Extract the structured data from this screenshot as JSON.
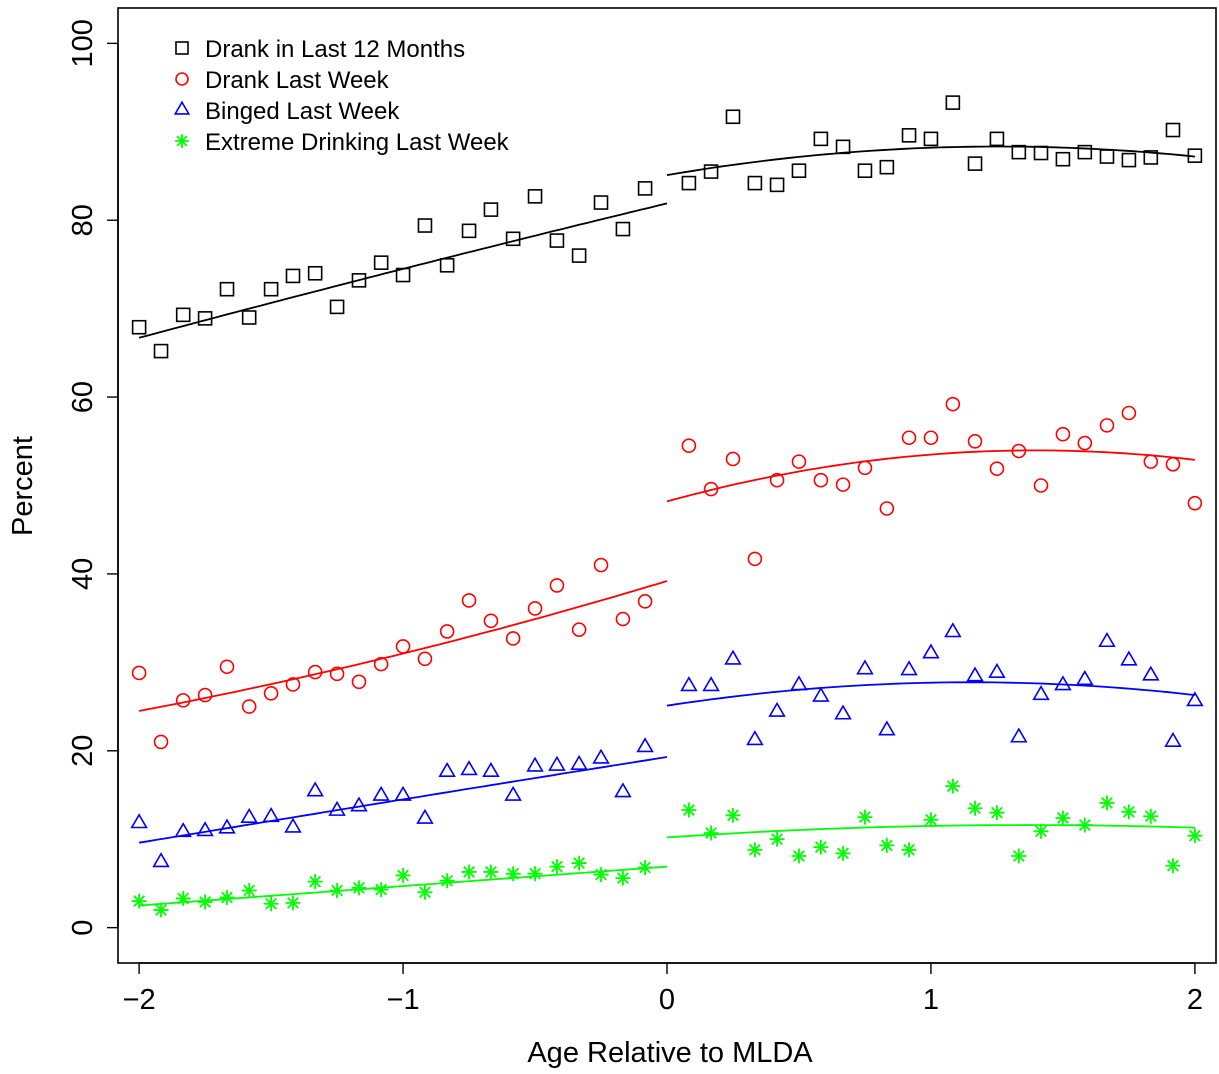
{
  "chart_data": {
    "type": "scatter",
    "title": "",
    "xlabel": "Age Relative to MLDA",
    "ylabel": "Percent",
    "xlim": [
      -2.08,
      2.08
    ],
    "ylim": [
      -4,
      104
    ],
    "xticks": [
      -2,
      -1,
      0,
      1,
      2
    ],
    "yticks": [
      0,
      20,
      40,
      60,
      80,
      100
    ],
    "xtick_labels": [
      "−2",
      "−1",
      "0",
      "1",
      "2"
    ],
    "ytick_labels": [
      "0",
      "20",
      "40",
      "60",
      "80",
      "100"
    ],
    "grid": false,
    "legend_position": "top-left",
    "series": [
      {
        "name": "Drank in Last 12 Months",
        "marker": "square",
        "color": "#000000",
        "x": [
          -2.0,
          -1.917,
          -1.833,
          -1.75,
          -1.667,
          -1.583,
          -1.5,
          -1.417,
          -1.333,
          -1.25,
          -1.167,
          -1.083,
          -1.0,
          -0.917,
          -0.833,
          -0.75,
          -0.667,
          -0.583,
          -0.5,
          -0.417,
          -0.333,
          -0.25,
          -0.167,
          -0.083,
          0.083,
          0.167,
          0.25,
          0.333,
          0.417,
          0.5,
          0.583,
          0.667,
          0.75,
          0.833,
          0.917,
          1.0,
          1.083,
          1.167,
          1.25,
          1.333,
          1.417,
          1.5,
          1.583,
          1.667,
          1.75,
          1.833,
          1.917,
          2.0
        ],
        "y": [
          67.9,
          65.2,
          69.3,
          68.9,
          72.2,
          69.0,
          72.2,
          73.7,
          74.0,
          70.2,
          73.2,
          75.2,
          73.8,
          79.4,
          74.9,
          78.8,
          81.2,
          77.9,
          82.7,
          77.7,
          76.0,
          82.0,
          79.0,
          83.6,
          84.2,
          85.5,
          91.7,
          84.2,
          84.0,
          85.6,
          89.2,
          88.3,
          85.6,
          86.0,
          89.6,
          89.2,
          93.3,
          86.4,
          89.2,
          87.7,
          87.6,
          86.9,
          87.7,
          87.2,
          86.8,
          87.1,
          90.2,
          87.3
        ],
        "fit_left": [
          66.7,
          74.5,
          81.9
        ],
        "fit_right": [
          85.1,
          88.2,
          87.2
        ]
      },
      {
        "name": "Drank Last Week",
        "marker": "circle",
        "color": "#ff0000",
        "x": [
          -2.0,
          -1.917,
          -1.833,
          -1.75,
          -1.667,
          -1.583,
          -1.5,
          -1.417,
          -1.333,
          -1.25,
          -1.167,
          -1.083,
          -1.0,
          -0.917,
          -0.833,
          -0.75,
          -0.667,
          -0.583,
          -0.5,
          -0.417,
          -0.333,
          -0.25,
          -0.167,
          -0.083,
          0.083,
          0.167,
          0.25,
          0.333,
          0.417,
          0.5,
          0.583,
          0.667,
          0.75,
          0.833,
          0.917,
          1.0,
          1.083,
          1.167,
          1.25,
          1.333,
          1.417,
          1.5,
          1.583,
          1.667,
          1.75,
          1.833,
          1.917,
          2.0
        ],
        "y": [
          28.8,
          21.0,
          25.7,
          26.3,
          29.5,
          25.0,
          26.5,
          27.5,
          28.9,
          28.7,
          27.8,
          29.8,
          31.8,
          30.4,
          33.5,
          37.0,
          34.7,
          32.7,
          36.1,
          38.7,
          33.7,
          41.0,
          34.9,
          36.9,
          54.5,
          49.6,
          53.0,
          41.7,
          50.6,
          52.7,
          50.6,
          50.1,
          52.0,
          47.4,
          55.4,
          55.4,
          59.2,
          55.0,
          51.9,
          53.9,
          50.0,
          55.8,
          54.8,
          56.8,
          58.2,
          52.7,
          52.4,
          48.0
        ],
        "fit_left": [
          24.5,
          31.0,
          39.2
        ],
        "fit_right": [
          48.2,
          53.5,
          52.9
        ]
      },
      {
        "name": "Binged Last Week",
        "marker": "triangle",
        "color": "#0000ff",
        "x": [
          -2.0,
          -1.917,
          -1.833,
          -1.75,
          -1.667,
          -1.583,
          -1.5,
          -1.417,
          -1.333,
          -1.25,
          -1.167,
          -1.083,
          -1.0,
          -0.917,
          -0.833,
          -0.75,
          -0.667,
          -0.583,
          -0.5,
          -0.417,
          -0.333,
          -0.25,
          -0.167,
          -0.083,
          0.083,
          0.167,
          0.25,
          0.333,
          0.417,
          0.5,
          0.583,
          0.667,
          0.75,
          0.833,
          0.917,
          1.0,
          1.083,
          1.167,
          1.25,
          1.333,
          1.417,
          1.5,
          1.583,
          1.667,
          1.75,
          1.833,
          1.917,
          2.0
        ],
        "y": [
          11.8,
          7.4,
          10.8,
          10.9,
          11.2,
          12.4,
          12.5,
          11.3,
          15.4,
          13.2,
          13.7,
          14.9,
          14.9,
          12.3,
          17.6,
          17.8,
          17.6,
          14.9,
          18.2,
          18.3,
          18.4,
          19.1,
          15.3,
          20.4,
          27.3,
          27.3,
          30.3,
          21.2,
          24.4,
          27.4,
          26.1,
          24.1,
          29.2,
          22.3,
          29.1,
          31.0,
          33.4,
          28.4,
          28.8,
          21.5,
          26.3,
          27.4,
          28.0,
          32.3,
          30.2,
          28.5,
          21.0,
          25.6
        ],
        "fit_left": [
          9.6,
          14.5,
          19.3
        ],
        "fit_right": [
          25.1,
          27.7,
          26.3
        ]
      },
      {
        "name": "Extreme Drinking Last Week",
        "marker": "asterisk",
        "color": "#00ff00",
        "x": [
          -2.0,
          -1.917,
          -1.833,
          -1.75,
          -1.667,
          -1.583,
          -1.5,
          -1.417,
          -1.333,
          -1.25,
          -1.167,
          -1.083,
          -1.0,
          -0.917,
          -0.833,
          -0.75,
          -0.667,
          -0.583,
          -0.5,
          -0.417,
          -0.333,
          -0.25,
          -0.167,
          -0.083,
          0.083,
          0.167,
          0.25,
          0.333,
          0.417,
          0.5,
          0.583,
          0.667,
          0.75,
          0.833,
          0.917,
          1.0,
          1.083,
          1.167,
          1.25,
          1.333,
          1.417,
          1.5,
          1.583,
          1.667,
          1.75,
          1.833,
          1.917,
          2.0
        ],
        "y": [
          3.0,
          2.0,
          3.3,
          2.9,
          3.4,
          4.2,
          2.7,
          2.8,
          5.2,
          4.2,
          4.5,
          4.3,
          5.9,
          4.0,
          5.3,
          6.3,
          6.3,
          6.1,
          6.1,
          6.9,
          7.3,
          6.0,
          5.6,
          6.8,
          13.3,
          10.7,
          12.7,
          8.8,
          10.0,
          8.1,
          9.1,
          8.4,
          12.5,
          9.3,
          8.8,
          12.2,
          16.0,
          13.5,
          13.0,
          8.1,
          10.9,
          12.4,
          11.6,
          14.1,
          13.1,
          12.6,
          7.0,
          10.4
        ],
        "fit_left": [
          2.5,
          4.7,
          6.9
        ],
        "fit_right": [
          10.2,
          11.5,
          11.3
        ]
      }
    ]
  }
}
